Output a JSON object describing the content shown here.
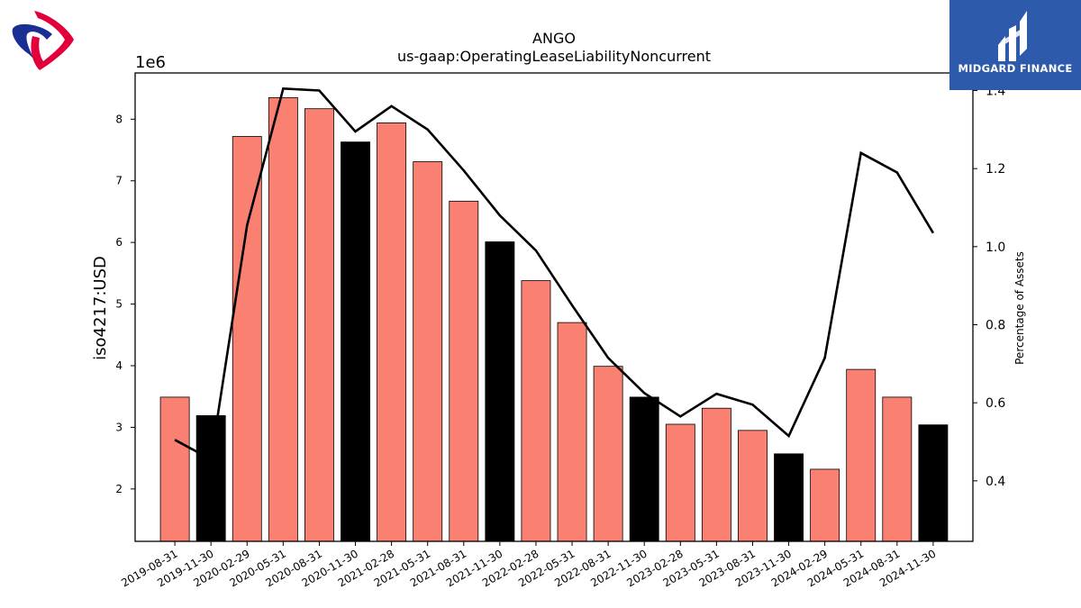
{
  "brand": {
    "name": "MIDGARD FINANCE"
  },
  "colors": {
    "bar_default": "#fa8072",
    "bar_highlight": "#000000",
    "line": "#000000",
    "brand_bg": "#2e5aac"
  },
  "chart_data": {
    "type": "bar",
    "title": "ANGO",
    "subtitle": "us-gaap:OperatingLeaseLiabilityNoncurrent",
    "ylabel": "iso4217:USD",
    "ylabel_right": "Percentage of Assets",
    "y_offset_label": "1e6",
    "ylim": [
      1.15,
      8.75
    ],
    "ylim_right": [
      0.245,
      1.445
    ],
    "yticks": [
      2,
      3,
      4,
      5,
      6,
      7,
      8
    ],
    "yticks_right": [
      "0.4",
      "0.6",
      "0.8",
      "1.0",
      "1.2",
      "1.4"
    ],
    "yticks_right_values": [
      0.4,
      0.6,
      0.8,
      1.0,
      1.2,
      1.4
    ],
    "categories": [
      "2019-08-31",
      "2019-11-30",
      "2020-02-29",
      "2020-05-31",
      "2020-08-31",
      "2020-11-30",
      "2021-02-28",
      "2021-05-31",
      "2021-08-31",
      "2021-11-30",
      "2022-02-28",
      "2022-05-31",
      "2022-08-31",
      "2022-11-30",
      "2023-02-28",
      "2023-05-31",
      "2023-08-31",
      "2023-11-30",
      "2024-02-29",
      "2024-05-31",
      "2024-08-31",
      "2024-11-30"
    ],
    "series": [
      {
        "type": "bar",
        "values": [
          3.49,
          3.19,
          7.72,
          8.35,
          8.17,
          7.63,
          7.94,
          7.31,
          6.67,
          6.01,
          5.38,
          4.7,
          3.99,
          3.49,
          3.05,
          3.31,
          2.95,
          2.57,
          2.32,
          3.94,
          3.49,
          3.04
        ],
        "highlight": [
          false,
          true,
          false,
          false,
          false,
          true,
          false,
          false,
          false,
          true,
          false,
          false,
          false,
          true,
          false,
          false,
          false,
          true,
          false,
          false,
          false,
          true
        ]
      },
      {
        "type": "line",
        "axis": "right",
        "values": [
          0.505,
          0.455,
          1.055,
          1.405,
          1.4,
          1.295,
          1.36,
          1.3,
          1.195,
          1.08,
          0.99,
          0.85,
          0.715,
          0.625,
          0.565,
          0.623,
          0.595,
          0.515,
          0.715,
          1.24,
          1.19,
          1.035
        ]
      }
    ]
  }
}
